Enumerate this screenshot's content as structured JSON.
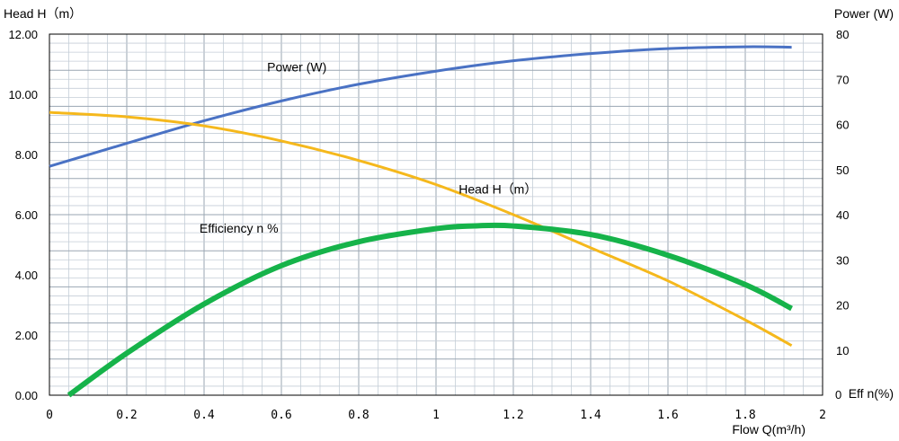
{
  "chart_data": {
    "type": "line",
    "title": "",
    "xlabel": "Flow Q(m³/h)",
    "ylabel_left": "Head H（m）",
    "ylabel_right_top": "Power (W)",
    "ylabel_right_bottom": "Eff n(%)",
    "xlim": [
      0,
      2
    ],
    "ylim_left": [
      0,
      12
    ],
    "ylim_right": [
      0,
      80
    ],
    "x_ticks": [
      "0",
      "0.2",
      "0.4",
      "0.6",
      "0.8",
      "1",
      "1.2",
      "1.4",
      "1.6",
      "1.8",
      "2"
    ],
    "y_left_ticks": [
      "0.00",
      "2.00",
      "4.00",
      "6.00",
      "8.00",
      "10.00",
      "12.00"
    ],
    "y_right_ticks": [
      "0",
      "10",
      "20",
      "30",
      "40",
      "50",
      "60",
      "70",
      "80"
    ],
    "grid": true,
    "series": [
      {
        "name": "Power (W)",
        "axis": "right",
        "color": "#4a72c4",
        "x": [
          0,
          0.2,
          0.4,
          0.6,
          0.8,
          1.0,
          1.2,
          1.4,
          1.6,
          1.8,
          1.92
        ],
        "y": [
          50.7,
          55.8,
          60.8,
          65.2,
          68.9,
          71.8,
          74.1,
          75.7,
          76.8,
          77.2,
          77.1
        ]
      },
      {
        "name": "Head H（m）",
        "axis": "left",
        "color": "#f5b81c",
        "x": [
          0,
          0.2,
          0.4,
          0.6,
          0.8,
          1.0,
          1.2,
          1.4,
          1.6,
          1.8,
          1.92
        ],
        "y": [
          9.4,
          9.25,
          8.95,
          8.45,
          7.8,
          7.0,
          6.0,
          4.9,
          3.8,
          2.5,
          1.65
        ]
      },
      {
        "name": "Efficiency n %",
        "axis": "right",
        "color": "#16b34a",
        "x": [
          0.05,
          0.2,
          0.4,
          0.6,
          0.8,
          1.0,
          1.1,
          1.2,
          1.4,
          1.6,
          1.8,
          1.92
        ],
        "y": [
          0,
          9.3,
          20.2,
          28.7,
          34.0,
          36.9,
          37.5,
          37.5,
          35.6,
          31.0,
          24.5,
          19.2
        ]
      }
    ],
    "annotations": [
      {
        "text": "Power (W)",
        "x": 0.64,
        "y_right": 71.7
      },
      {
        "text": "Head H（m）",
        "x": 1.16,
        "y_left": 6.7
      },
      {
        "text": "Efficiency n %",
        "x": 0.49,
        "y_right": 36.0
      }
    ]
  }
}
